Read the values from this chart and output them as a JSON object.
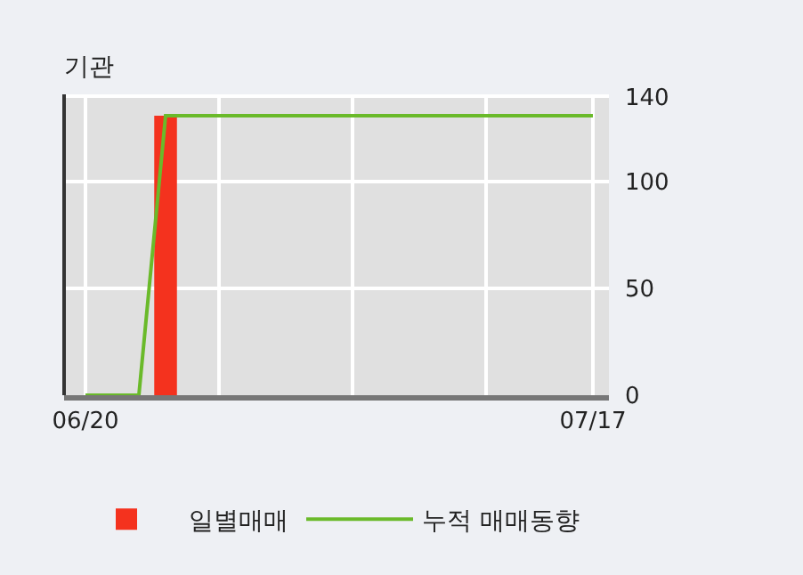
{
  "chart_data": {
    "type": "bar",
    "title": "기관",
    "categories": [
      "06/20",
      null,
      null,
      null,
      null,
      null,
      null,
      null,
      null,
      null,
      null,
      null,
      null,
      null,
      null,
      null,
      null,
      null,
      null,
      "07/17"
    ],
    "series": [
      {
        "name": "일별매매",
        "color": "#f4321e",
        "values": [
          0,
          0,
          0,
          131,
          0,
          0,
          0,
          0,
          0,
          0,
          0,
          0,
          0,
          0,
          0,
          0,
          0,
          0,
          0,
          0
        ]
      },
      {
        "name": "누적 매매동향",
        "type": "line",
        "color": "#6aba2a",
        "values": [
          0,
          0,
          0,
          131,
          131,
          131,
          131,
          131,
          131,
          131,
          131,
          131,
          131,
          131,
          131,
          131,
          131,
          131,
          131,
          131
        ]
      }
    ],
    "ylim": [
      0,
      141
    ],
    "yticks": [
      0,
      50,
      100,
      140
    ],
    "grid": true,
    "legend": "bottom"
  }
}
